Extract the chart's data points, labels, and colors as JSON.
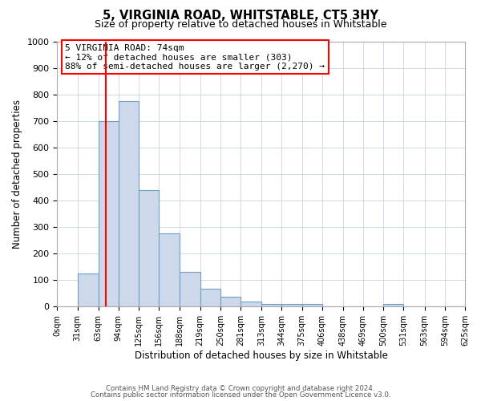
{
  "title": "5, VIRGINIA ROAD, WHITSTABLE, CT5 3HY",
  "subtitle": "Size of property relative to detached houses in Whitstable",
  "xlabel": "Distribution of detached houses by size in Whitstable",
  "ylabel": "Number of detached properties",
  "bin_edges": [
    0,
    31,
    63,
    94,
    125,
    156,
    188,
    219,
    250,
    281,
    313,
    344,
    375,
    406,
    438,
    469,
    500,
    531,
    563,
    594,
    625
  ],
  "bar_heights": [
    0,
    125,
    700,
    775,
    440,
    275,
    130,
    68,
    37,
    20,
    10,
    10,
    10,
    0,
    0,
    0,
    10,
    0,
    0,
    0
  ],
  "bar_face_color": "#cdd9ea",
  "bar_edge_color": "#6ca0c8",
  "vline_x": 74,
  "vline_color": "red",
  "annotation_text": "5 VIRGINIA ROAD: 74sqm\n← 12% of detached houses are smaller (303)\n88% of semi-detached houses are larger (2,270) →",
  "annotation_box_color": "white",
  "annotation_box_edge": "red",
  "ylim": [
    0,
    1000
  ],
  "yticks": [
    0,
    100,
    200,
    300,
    400,
    500,
    600,
    700,
    800,
    900,
    1000
  ],
  "x_tick_labels": [
    "0sqm",
    "31sqm",
    "63sqm",
    "94sqm",
    "125sqm",
    "156sqm",
    "188sqm",
    "219sqm",
    "250sqm",
    "281sqm",
    "313sqm",
    "344sqm",
    "375sqm",
    "406sqm",
    "438sqm",
    "469sqm",
    "500sqm",
    "531sqm",
    "563sqm",
    "594sqm",
    "625sqm"
  ],
  "grid_color": "#c8d4e0",
  "background_color": "#ffffff",
  "footer_line1": "Contains HM Land Registry data © Crown copyright and database right 2024.",
  "footer_line2": "Contains public sector information licensed under the Open Government Licence v3.0."
}
